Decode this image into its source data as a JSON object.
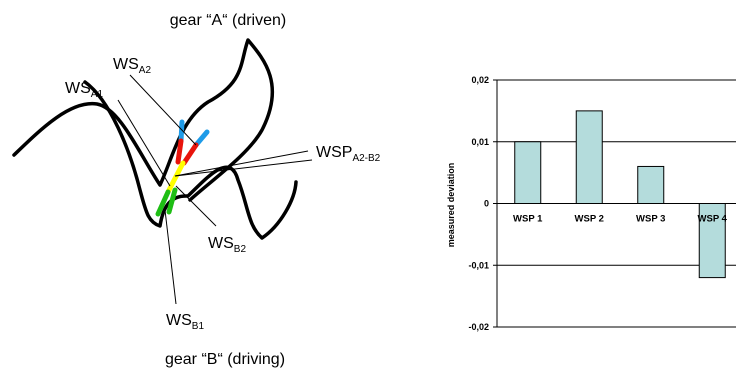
{
  "diagram": {
    "top_label": "gear “A“ (driven)",
    "bottom_label": "gear “B“ (driving)",
    "callouts": {
      "ws_a1": {
        "main": "WS",
        "sub": "A1"
      },
      "ws_a2": {
        "main": "WS",
        "sub": "A2"
      },
      "wsp_a2_b2": {
        "main": "WSP",
        "sub": "A2-B2"
      },
      "ws_b2": {
        "main": "WS",
        "sub": "B2"
      },
      "ws_b1": {
        "main": "WS",
        "sub": "B1"
      }
    },
    "colors": {
      "gear_outline": "#000000",
      "segment_blue": "#1e9be8",
      "segment_red": "#e8140c",
      "segment_yellow": "#ffff00",
      "segment_green": "#1ebe14"
    }
  },
  "chart_data": {
    "type": "bar",
    "categories": [
      "WSP 1",
      "WSP 2",
      "WSP 3",
      "WSP 4"
    ],
    "values": [
      0.01,
      0.015,
      0.006,
      -0.012
    ],
    "ylabel": "measured deviation",
    "ylim": [
      -0.02,
      0.02
    ],
    "yticks": [
      "0,02",
      "0,01",
      "0",
      "-0,01",
      "-0,02"
    ],
    "bar_color": "#b4dcdc",
    "grid": true
  }
}
